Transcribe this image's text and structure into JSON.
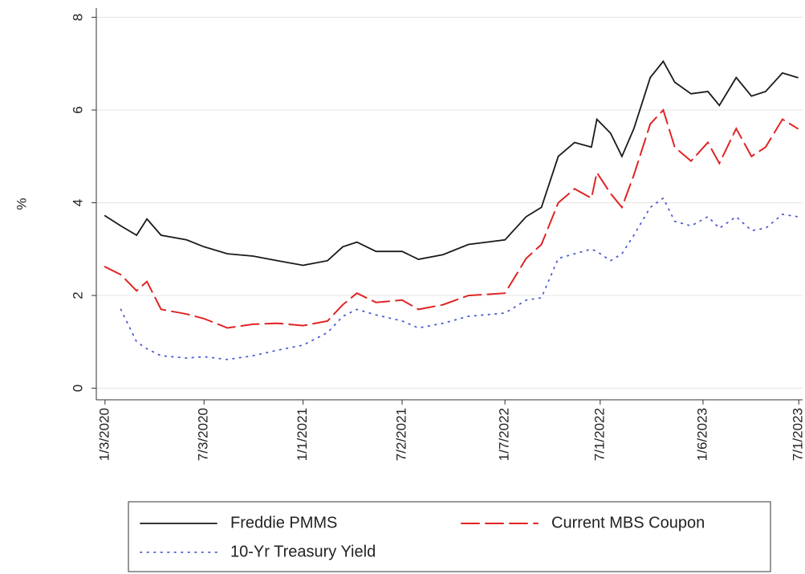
{
  "chart_data": {
    "type": "line",
    "y_label": "%",
    "x": [
      "2020-01-03",
      "2020-02-01",
      "2020-03-01",
      "2020-03-20",
      "2020-04-15",
      "2020-06-01",
      "2020-07-03",
      "2020-08-15",
      "2020-10-01",
      "2020-11-15",
      "2021-01-01",
      "2021-02-15",
      "2021-03-15",
      "2021-04-10",
      "2021-05-15",
      "2021-07-02",
      "2021-08-01",
      "2021-09-15",
      "2021-11-01",
      "2022-01-07",
      "2022-02-15",
      "2022-03-15",
      "2022-04-15",
      "2022-05-15",
      "2022-06-15",
      "2022-06-25",
      "2022-07-20",
      "2022-08-10",
      "2022-09-01",
      "2022-10-01",
      "2022-10-25",
      "2022-11-15",
      "2022-12-15",
      "2023-01-15",
      "2023-02-05",
      "2023-03-08",
      "2023-04-05",
      "2023-05-01",
      "2023-06-01",
      "2023-06-29"
    ],
    "series": [
      {
        "name": "Freddie PMMS",
        "color": "#1a1a1a",
        "style": "solid",
        "values": [
          3.72,
          3.5,
          3.3,
          3.65,
          3.3,
          3.2,
          3.05,
          2.9,
          2.85,
          2.75,
          2.65,
          2.75,
          3.05,
          3.15,
          2.95,
          2.95,
          2.78,
          2.88,
          3.1,
          3.2,
          3.7,
          3.9,
          5.0,
          5.3,
          5.2,
          5.8,
          5.5,
          5.0,
          5.6,
          6.7,
          7.05,
          6.6,
          6.35,
          6.4,
          6.1,
          6.7,
          6.3,
          6.4,
          6.8,
          6.7
        ]
      },
      {
        "name": "Current MBS Coupon",
        "color": "#e02424",
        "style": "dashed",
        "values": [
          2.62,
          2.45,
          2.1,
          2.3,
          1.7,
          1.6,
          1.5,
          1.3,
          1.38,
          1.4,
          1.35,
          1.45,
          1.8,
          2.05,
          1.85,
          1.9,
          1.7,
          1.8,
          2.0,
          2.05,
          2.8,
          3.1,
          4.0,
          4.3,
          4.1,
          4.65,
          4.2,
          3.9,
          4.6,
          5.7,
          6.0,
          5.2,
          4.9,
          5.3,
          4.85,
          5.6,
          5.0,
          5.2,
          5.8,
          5.6
        ]
      },
      {
        "name": "10-Yr Treasury Yield",
        "color": "#4a5ad0",
        "style": "dotted",
        "values": [
          null,
          1.7,
          1.0,
          0.85,
          0.7,
          0.65,
          0.68,
          0.62,
          0.7,
          0.82,
          0.93,
          1.2,
          1.55,
          1.7,
          1.58,
          1.45,
          1.3,
          1.4,
          1.55,
          1.62,
          1.9,
          1.95,
          2.8,
          2.9,
          3.0,
          2.95,
          2.75,
          2.9,
          3.3,
          3.9,
          4.1,
          3.6,
          3.5,
          3.7,
          3.45,
          3.7,
          3.4,
          3.45,
          3.75,
          3.7
        ]
      }
    ],
    "xlim": [
      "2019-12-18",
      "2023-07-08"
    ],
    "xticks": [
      {
        "value": "2020-01-03",
        "label": "1/3/2020"
      },
      {
        "value": "2020-07-03",
        "label": "7/3/2020"
      },
      {
        "value": "2021-01-01",
        "label": "1/1/2021"
      },
      {
        "value": "2021-07-02",
        "label": "7/2/2021"
      },
      {
        "value": "2022-01-07",
        "label": "1/7/2022"
      },
      {
        "value": "2022-07-01",
        "label": "7/1/2022"
      },
      {
        "value": "2023-01-06",
        "label": "1/6/2023"
      },
      {
        "value": "2023-07-01",
        "label": "7/1/2023"
      }
    ],
    "ylim": [
      -0.25,
      8.2
    ],
    "yticks": [
      0,
      2,
      4,
      6,
      8
    ],
    "grid": true,
    "legend": "bottom"
  }
}
